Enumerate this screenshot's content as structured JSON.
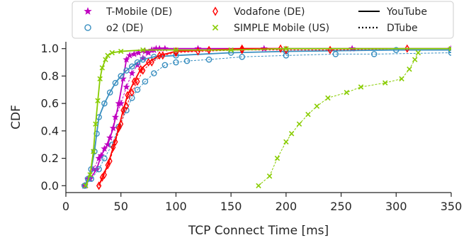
{
  "chart_data": {
    "type": "line",
    "xlabel": "TCP Connect Time [ms]",
    "ylabel": "CDF",
    "xlim": [
      0,
      350
    ],
    "ylim": [
      -0.05,
      1.05
    ],
    "xticks": [
      0,
      50,
      100,
      150,
      200,
      250,
      300,
      350
    ],
    "yticks": [
      0.0,
      0.2,
      0.4,
      0.6,
      0.8,
      1.0
    ],
    "legend_location": "top",
    "series": [
      {
        "name": "T-Mobile (DE)",
        "service": "YouTube",
        "marker": "star",
        "color": "#c000c0",
        "x": [
          17,
          22,
          28,
          32,
          38,
          43,
          48,
          52,
          55,
          58,
          62,
          66,
          72,
          78,
          82,
          90,
          120,
          180,
          260,
          350
        ],
        "y": [
          0.0,
          0.05,
          0.12,
          0.22,
          0.3,
          0.42,
          0.6,
          0.78,
          0.92,
          0.95,
          0.96,
          0.97,
          0.98,
          0.99,
          1.0,
          1.0,
          1.0,
          1.0,
          1.0,
          1.0
        ]
      },
      {
        "name": "T-Mobile (DE)",
        "service": "DTube",
        "marker": "star",
        "color": "#c000c0",
        "x": [
          17,
          20,
          25,
          30,
          35,
          40,
          45,
          50,
          55,
          60,
          65,
          70,
          75,
          80,
          85
        ],
        "y": [
          0.0,
          0.05,
          0.12,
          0.2,
          0.27,
          0.35,
          0.5,
          0.6,
          0.72,
          0.82,
          0.88,
          0.93,
          0.97,
          0.99,
          1.0
        ]
      },
      {
        "name": "o2 (DE)",
        "service": "YouTube",
        "marker": "circle",
        "color": "#3a8fc0",
        "x": [
          17,
          20,
          23,
          26,
          28,
          30,
          35,
          40,
          45,
          50,
          55,
          60,
          65,
          70,
          80,
          100,
          150,
          200,
          300,
          350
        ],
        "y": [
          0.0,
          0.05,
          0.12,
          0.25,
          0.38,
          0.5,
          0.6,
          0.68,
          0.75,
          0.8,
          0.84,
          0.87,
          0.9,
          0.92,
          0.94,
          0.95,
          0.97,
          0.98,
          0.99,
          0.99
        ]
      },
      {
        "name": "o2 (DE)",
        "service": "DTube",
        "marker": "circle",
        "color": "#3a8fc0",
        "x": [
          17,
          23,
          30,
          35,
          42,
          48,
          55,
          60,
          65,
          72,
          80,
          90,
          100,
          110,
          130,
          160,
          200,
          245,
          280,
          350
        ],
        "y": [
          0.0,
          0.05,
          0.12,
          0.2,
          0.3,
          0.43,
          0.55,
          0.64,
          0.7,
          0.76,
          0.82,
          0.88,
          0.9,
          0.91,
          0.92,
          0.94,
          0.95,
          0.96,
          0.96,
          0.97
        ]
      },
      {
        "name": "Vodafone (DE)",
        "service": "YouTube",
        "marker": "diamond",
        "color": "#ff0000",
        "x": [
          30,
          33,
          38,
          43,
          48,
          52,
          56,
          62,
          68,
          75,
          85,
          100,
          130,
          160,
          195
        ],
        "y": [
          0.0,
          0.06,
          0.15,
          0.28,
          0.42,
          0.55,
          0.66,
          0.76,
          0.85,
          0.9,
          0.95,
          0.98,
          0.99,
          1.0,
          1.0
        ]
      },
      {
        "name": "Vodafone (DE)",
        "service": "DTube",
        "marker": "diamond",
        "color": "#ff0000",
        "x": [
          30,
          35,
          40,
          45,
          50,
          55,
          60,
          65,
          70,
          78,
          88,
          100,
          120,
          160,
          200,
          240,
          310
        ],
        "y": [
          0.0,
          0.08,
          0.18,
          0.32,
          0.45,
          0.58,
          0.68,
          0.76,
          0.84,
          0.9,
          0.95,
          0.97,
          0.98,
          0.99,
          0.99,
          0.99,
          1.0
        ]
      },
      {
        "name": "SIMPLE Mobile (US)",
        "service": "YouTube",
        "marker": "x",
        "color": "#88cc00",
        "x": [
          18,
          22,
          25,
          27,
          29,
          31,
          33,
          36,
          38,
          42,
          50,
          70,
          100,
          150,
          200,
          350
        ],
        "y": [
          0.0,
          0.08,
          0.25,
          0.45,
          0.62,
          0.78,
          0.86,
          0.92,
          0.95,
          0.97,
          0.98,
          0.99,
          0.99,
          0.99,
          1.0,
          1.0
        ]
      },
      {
        "name": "SIMPLE Mobile (US)",
        "service": "DTube",
        "marker": "x",
        "color": "#88cc00",
        "x": [
          175,
          185,
          192,
          200,
          205,
          212,
          220,
          228,
          238,
          255,
          268,
          290,
          305,
          312,
          317,
          320
        ],
        "y": [
          0.0,
          0.07,
          0.2,
          0.32,
          0.38,
          0.45,
          0.52,
          0.58,
          0.64,
          0.68,
          0.72,
          0.75,
          0.78,
          0.85,
          0.92,
          0.97
        ]
      }
    ],
    "legend": {
      "entries": [
        {
          "label": "T-Mobile (DE)",
          "kind": "marker",
          "marker": "star",
          "color": "#c000c0"
        },
        {
          "label": "Vodafone (DE)",
          "kind": "marker",
          "marker": "diamond",
          "color": "#ff0000"
        },
        {
          "label": "YouTube",
          "kind": "line",
          "dash": "solid",
          "color": "#000000"
        },
        {
          "label": "o2 (DE)",
          "kind": "marker",
          "marker": "circle",
          "color": "#3a8fc0"
        },
        {
          "label": "SIMPLE Mobile (US)",
          "kind": "marker",
          "marker": "x",
          "color": "#88cc00"
        },
        {
          "label": "DTube",
          "kind": "line",
          "dash": "dotted",
          "color": "#000000"
        }
      ]
    }
  }
}
